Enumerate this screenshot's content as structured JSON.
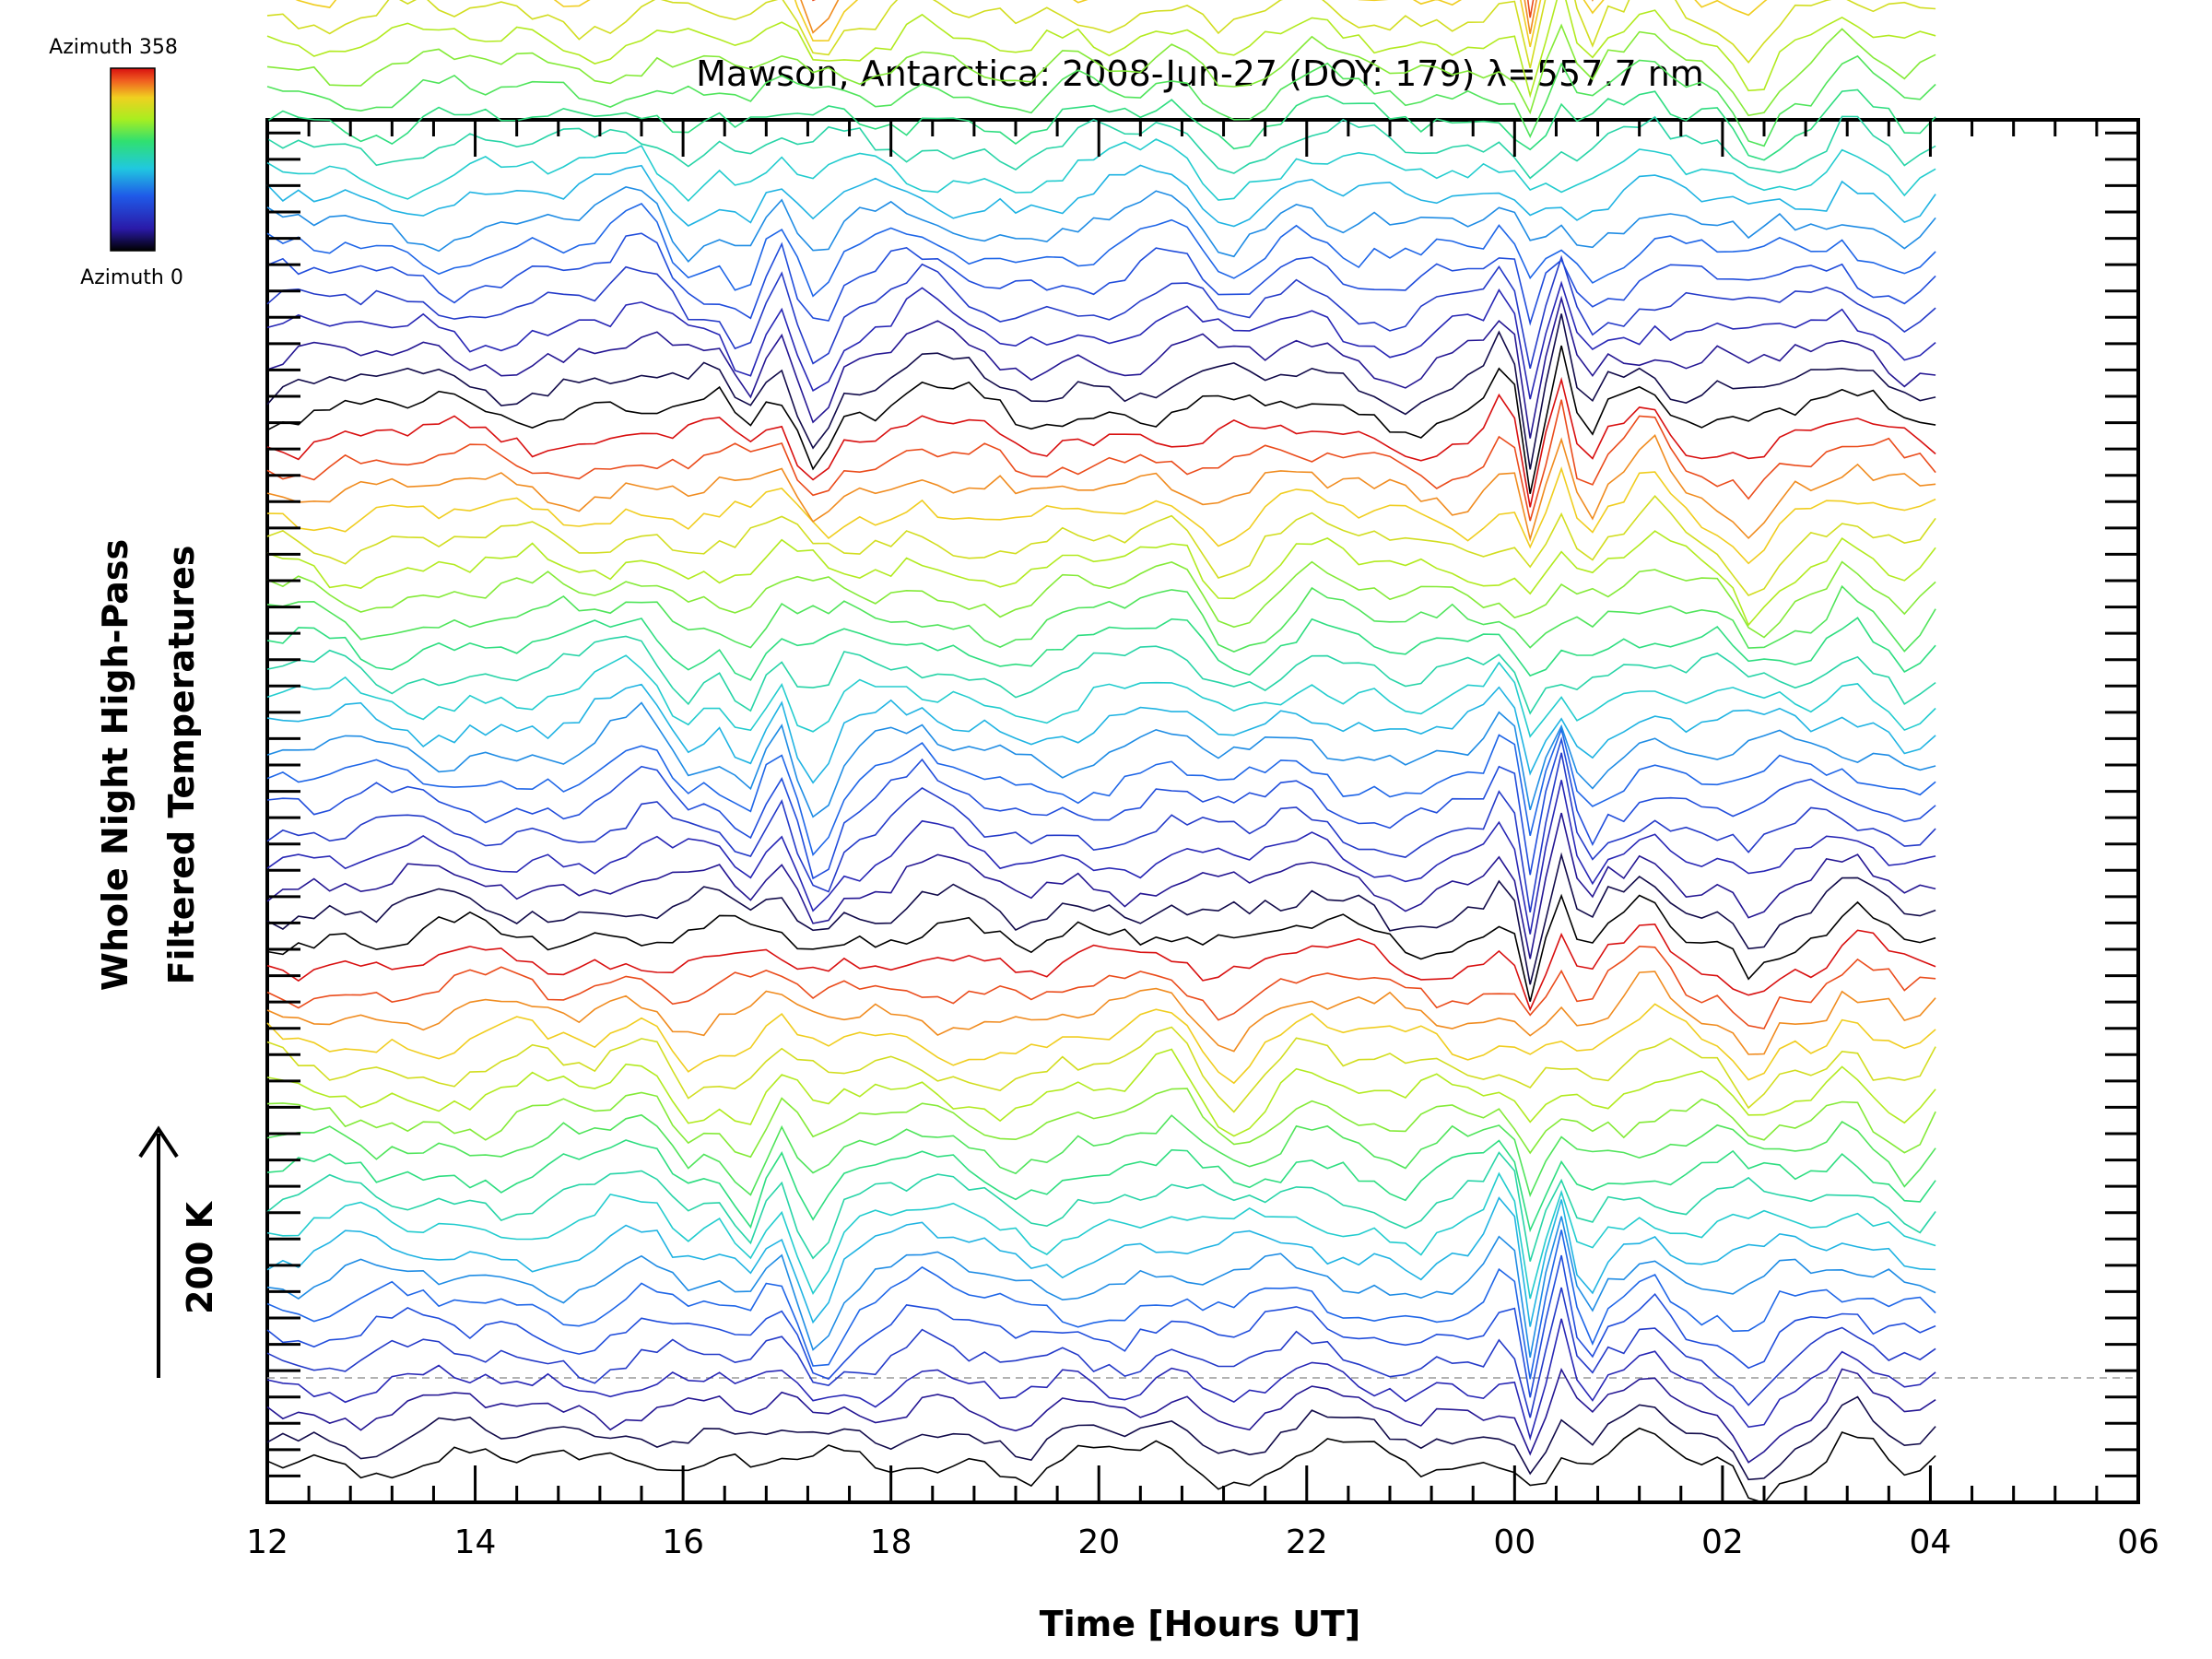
{
  "chart_data": {
    "type": "line",
    "title": "Mawson, Antarctica: 2008-Jun-27 (DOY: 179) λ=557.7 nm",
    "xlabel": "Time [Hours UT]",
    "ylabel_line1": "Whole Night High-Pass",
    "ylabel_line2": "Filtered Temperatures",
    "scale_label": "200 K",
    "x_ticks": [
      "12",
      "14",
      "16",
      "18",
      "20",
      "22",
      "00",
      "02",
      "04",
      "06"
    ],
    "x_tick_values": [
      12,
      14,
      16,
      18,
      20,
      22,
      24,
      26,
      28,
      30
    ],
    "xlim": [
      12,
      30
    ],
    "x_data_range": [
      12,
      28.1
    ],
    "n_series": 60,
    "series_per_group": 20,
    "series_offset_k": 40,
    "ylim_k": [
      -60,
      2040
    ],
    "y_tick_step_k": 40,
    "grid": false,
    "baseline_dashed": true,
    "colorbar": {
      "top_label": "Azimuth 358",
      "bottom_label": "Azimuth 0",
      "min": 0,
      "max": 358
    },
    "feature_times": [
      {
        "t": 15.6,
        "amp": 40,
        "w": 0.35
      },
      {
        "t": 16.0,
        "amp": -30,
        "w": 0.2
      },
      {
        "t": 16.6,
        "amp": -40,
        "w": 0.15
      },
      {
        "t": 16.9,
        "amp": 50,
        "w": 0.1
      },
      {
        "t": 17.3,
        "amp": -70,
        "w": 0.18
      },
      {
        "t": 18.3,
        "amp": 30,
        "w": 0.3
      },
      {
        "t": 19.3,
        "amp": -25,
        "w": 0.3
      },
      {
        "t": 20.7,
        "amp": 35,
        "w": 0.35
      },
      {
        "t": 21.2,
        "amp": -30,
        "w": 0.3
      },
      {
        "t": 22.0,
        "amp": 35,
        "w": 0.3
      },
      {
        "t": 23.0,
        "amp": -20,
        "w": 0.3
      },
      {
        "t": 23.9,
        "amp": 45,
        "w": 0.15
      },
      {
        "t": 24.15,
        "amp": -110,
        "w": 0.1
      },
      {
        "t": 24.45,
        "amp": 70,
        "w": 0.08
      },
      {
        "t": 24.7,
        "amp": -50,
        "w": 0.1
      },
      {
        "t": 25.3,
        "amp": 45,
        "w": 0.2
      },
      {
        "t": 26.3,
        "amp": -45,
        "w": 0.2
      },
      {
        "t": 27.2,
        "amp": 40,
        "w": 0.2
      },
      {
        "t": 27.8,
        "amp": -30,
        "w": 0.15
      }
    ]
  }
}
